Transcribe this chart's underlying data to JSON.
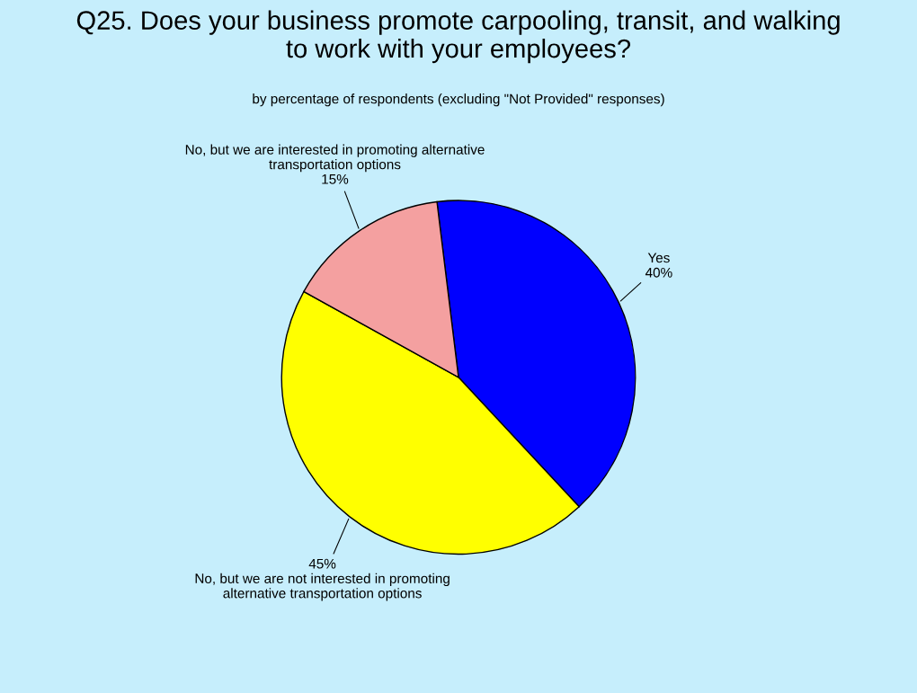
{
  "chart_data": {
    "type": "pie",
    "title": "Q25. Does your business promote carpooling, transit, and walking\nto work with your employees?",
    "subtitle": "by percentage of respondents (excluding \"Not Provided\" responses)",
    "categories": [
      "Yes",
      "No, but we are not interested in promoting\nalternative transportation options",
      "No, but we are interested in promoting alternative\ntransportation options"
    ],
    "values": [
      40,
      45,
      15
    ],
    "value_labels": [
      "40%",
      "45%",
      "15%"
    ],
    "colors": [
      "#0000ff",
      "#ffff00",
      "#f4a0a0"
    ],
    "legend": false
  }
}
